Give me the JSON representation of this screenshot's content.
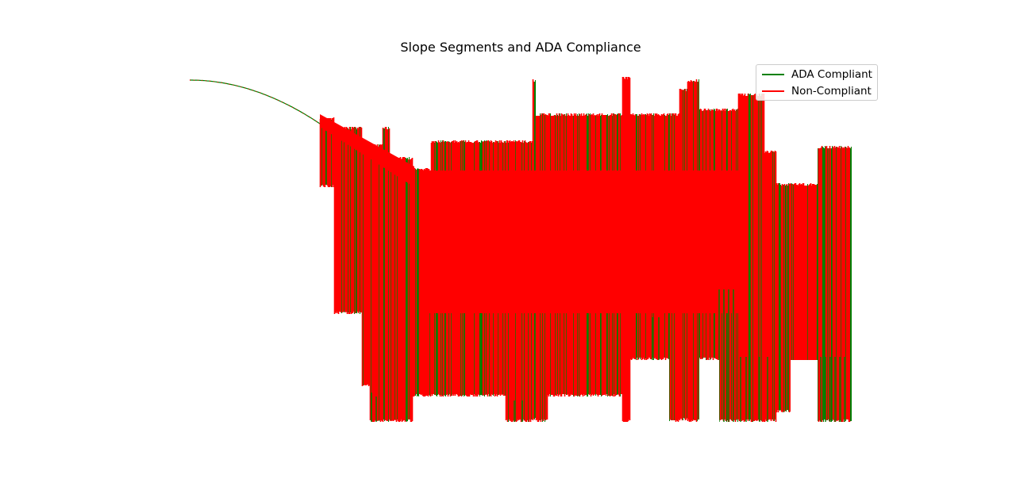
{
  "title": "Slope Segments and ADA Compliance",
  "legend": {
    "items": [
      {
        "label": "ADA Compliant",
        "color": "#008000"
      },
      {
        "label": "Non-Compliant",
        "color": "#ff0000"
      }
    ],
    "placement": "top-right"
  },
  "chart_data": {
    "type": "line",
    "title": "Slope Segments and ADA Compliance",
    "xlabel": "",
    "ylabel": "",
    "axes_visible": false,
    "grid": false,
    "legend_placement": "top-right",
    "series": [
      {
        "name": "ADA Compliant",
        "color": "#008000"
      },
      {
        "name": "Non-Compliant",
        "color": "#ff0000"
      }
    ],
    "note_count": "thousands of short segments colored by compliance"
  }
}
